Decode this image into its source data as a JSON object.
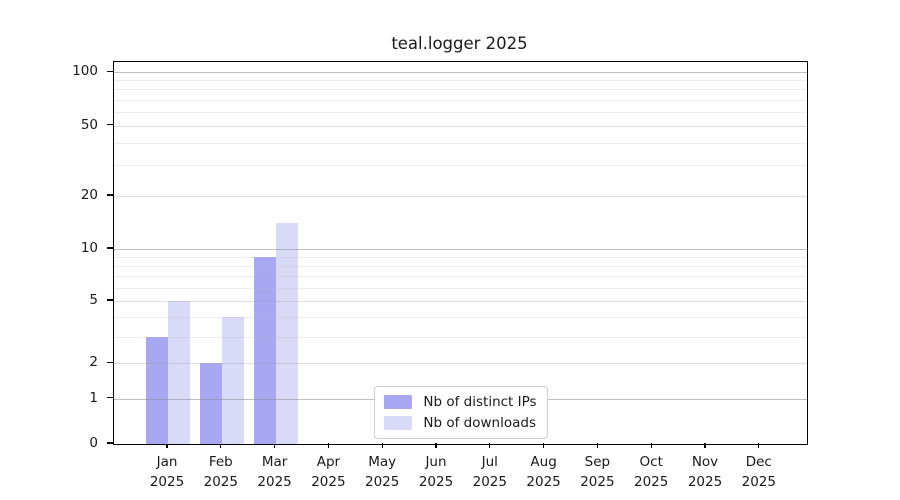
{
  "title": "teal.logger 2025",
  "colors": {
    "distinct_ips": "#a7a7f2",
    "downloads": "#d9d9f8",
    "grid_decade": "rgba(140,140,140,0.55)",
    "grid_labeled": "rgba(160,160,160,0.35)",
    "grid_minor": "rgba(185,185,185,0.28)",
    "axis": "#000000",
    "text": "#1a1a1a",
    "background": "#ffffff"
  },
  "chart_data": {
    "type": "bar",
    "title": "teal.logger 2025",
    "categories": [
      "Jan",
      "Feb",
      "Mar",
      "Apr",
      "May",
      "Jun",
      "Jul",
      "Aug",
      "Sep",
      "Oct",
      "Nov",
      "Dec"
    ],
    "category_year": "2025",
    "series": [
      {
        "name": "Nb of distinct IPs",
        "color_key": "distinct_ips",
        "values": [
          3,
          2,
          9,
          0,
          0,
          0,
          0,
          0,
          0,
          0,
          0,
          0
        ]
      },
      {
        "name": "Nb of downloads",
        "color_key": "downloads",
        "values": [
          5,
          4,
          14,
          0,
          0,
          0,
          0,
          0,
          0,
          0,
          0,
          0
        ]
      }
    ],
    "xlabel": "",
    "ylabel": "",
    "y_axis": {
      "scale": "asinh",
      "tick_labels": [
        0,
        1,
        2,
        5,
        10,
        20,
        50,
        100
      ],
      "decade_gridlines": [
        1,
        10,
        100
      ],
      "labeled_gridlines": [
        2,
        5,
        20,
        50
      ],
      "minor_gridlines": [
        3,
        4,
        6,
        7,
        8,
        9,
        30,
        40,
        60,
        70,
        80,
        90
      ],
      "ylim": [
        0,
        115
      ]
    },
    "grid": "on",
    "legend_position": "lower center"
  }
}
